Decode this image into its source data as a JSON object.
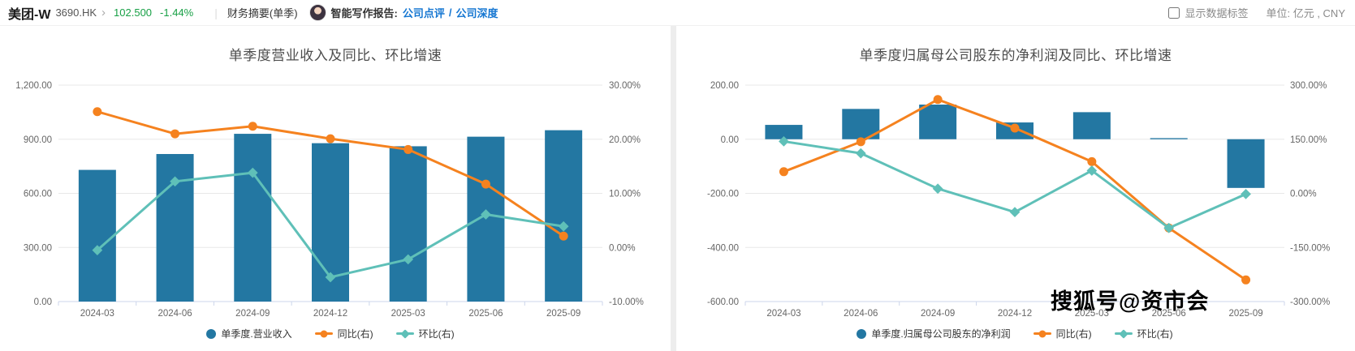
{
  "header": {
    "stock_name": "美团-W",
    "stock_code": "3690.HK",
    "chevron": "›",
    "price": "102.500",
    "change": "-1.44%",
    "sep1": "|",
    "report_type": "财务摘要(单季)",
    "ai_label": "智能写作报告:",
    "link_review": "公司点评",
    "link_sep": "/",
    "link_deep": "公司深度",
    "show_labels_text": "显示数据标签",
    "unit_text": "单位: 亿元 , CNY"
  },
  "watermark": "搜狐号@资市会",
  "colors": {
    "bar": "#2377a2",
    "yoy_line": "#f5821f",
    "qoq_line": "#5fc0b8",
    "price_down_green": "#18a046",
    "link_blue": "#1677d2",
    "grid": "#e8e8e8",
    "axis_line": "#ccd6eb"
  },
  "chart_data": [
    {
      "type": "bar",
      "title": "单季度营业收入及同比、环比增速",
      "categories": [
        "2024-03",
        "2024-06",
        "2024-09",
        "2024-12",
        "2025-03",
        "2025-06",
        "2025-09"
      ],
      "series": [
        {
          "name": "单季度.营业收入",
          "type": "bar",
          "axis": "left",
          "marker": "circle",
          "color": "#2377a2",
          "values": [
            730,
            818,
            930,
            878,
            861,
            914,
            950
          ]
        },
        {
          "name": "同比(右)",
          "type": "line",
          "axis": "right",
          "marker": "circle",
          "color": "#f5821f",
          "values": [
            25.1,
            21.0,
            22.4,
            20.1,
            18.1,
            11.7,
            2.1
          ]
        },
        {
          "name": "环比(右)",
          "type": "line",
          "axis": "right",
          "marker": "diamond",
          "color": "#5fc0b8",
          "values": [
            -0.5,
            12.2,
            13.8,
            -5.5,
            -2.2,
            6.1,
            3.9
          ]
        }
      ],
      "y_left": {
        "range": [
          0,
          1200
        ],
        "ticks": [
          "1,200.00",
          "900.00",
          "600.00",
          "300.00",
          "0.00"
        ],
        "label": "亿元"
      },
      "y_right": {
        "range": [
          -10,
          30
        ],
        "ticks": [
          "30.00%",
          "20.00%",
          "10.00%",
          "0.00%",
          "-10.00%"
        ]
      },
      "grid": true,
      "legend_position": "bottom"
    },
    {
      "type": "bar",
      "title": "单季度归属母公司股东的净利润及同比、环比增速",
      "categories": [
        "2024-03",
        "2024-06",
        "2024-09",
        "2024-12",
        "2025-03",
        "2025-06",
        "2025-09"
      ],
      "series": [
        {
          "name": "单季度.归属母公司股东的净利润",
          "type": "bar",
          "axis": "left",
          "marker": "circle",
          "color": "#2377a2",
          "values": [
            53,
            112,
            128,
            62,
            100,
            4,
            -180
          ]
        },
        {
          "name": "同比(右)",
          "type": "line",
          "axis": "right",
          "marker": "circle",
          "color": "#f5821f",
          "values": [
            60,
            143,
            260,
            181,
            88,
            -96,
            -240
          ]
        },
        {
          "name": "环比(右)",
          "type": "line",
          "axis": "right",
          "marker": "diamond",
          "color": "#5fc0b8",
          "values": [
            144,
            111,
            13,
            -52,
            63,
            -96,
            -2
          ]
        }
      ],
      "y_left": {
        "range": [
          -600,
          200
        ],
        "ticks": [
          "200.00",
          "0.00",
          "-200.00",
          "-400.00",
          "-600.00"
        ],
        "label": "亿元"
      },
      "y_right": {
        "range": [
          -300,
          300
        ],
        "ticks": [
          "300.00%",
          "150.00%",
          "0.00%",
          "-150.00%",
          "-300.00%"
        ]
      },
      "grid": true,
      "legend_position": "bottom"
    }
  ]
}
